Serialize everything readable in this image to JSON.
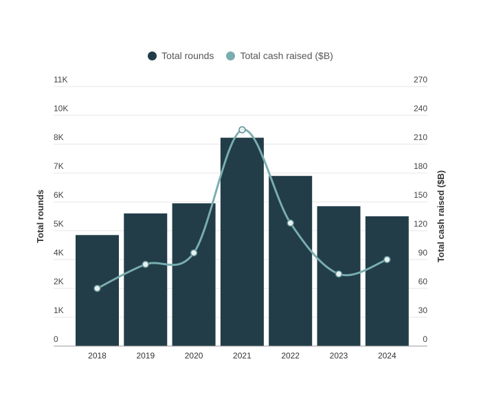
{
  "chart_data": {
    "type": "bar",
    "categories": [
      "2018",
      "2019",
      "2020",
      "2021",
      "2022",
      "2023",
      "2024"
    ],
    "series": [
      {
        "name": "Total rounds",
        "type": "bar",
        "axis": "left",
        "color": "#223d48",
        "values": [
          4850,
          5600,
          5950,
          8450,
          6900,
          5850,
          5500
        ]
      },
      {
        "name": "Total cash raised ($B)",
        "type": "line",
        "axis": "right",
        "color": "#7aadb0",
        "values": [
          60,
          85,
          97,
          225,
          128,
          75,
          90
        ]
      }
    ],
    "y_left": {
      "label": "Total rounds",
      "ticks": [
        0,
        1000,
        2000,
        4000,
        5000,
        6000,
        7000,
        8000,
        10000,
        11000
      ],
      "tick_labels": [
        "0",
        "1K",
        "2K",
        "4K",
        "5K",
        "6K",
        "7K",
        "8K",
        "10K",
        "11K"
      ]
    },
    "y_right": {
      "label": "Total cash raised ($B)",
      "ylim": [
        0,
        270
      ],
      "ticks": [
        0,
        30,
        60,
        90,
        120,
        150,
        180,
        210,
        240,
        270
      ]
    },
    "grid": true,
    "legend_position": "top-center"
  }
}
